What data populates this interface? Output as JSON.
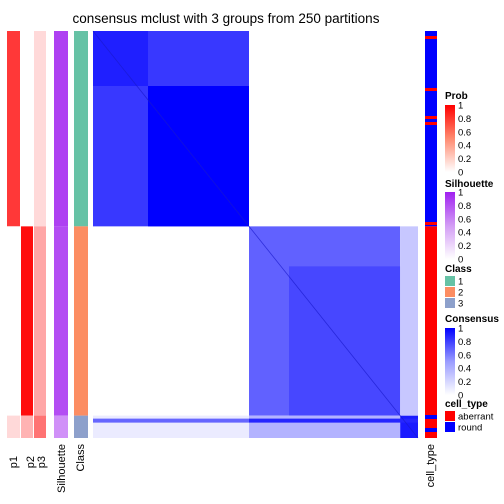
{
  "chart_data": {
    "type": "heatmap",
    "title": "consensus mclust with 3 groups from 250 partitions",
    "n_samples": 200,
    "clusters": [
      {
        "class": "1",
        "size": 96
      },
      {
        "class": "2",
        "size": 93
      },
      {
        "class": "3",
        "size": 11
      }
    ],
    "row_annotations": [
      {
        "label": "p1"
      },
      {
        "label": "p2"
      },
      {
        "label": "p3"
      },
      {
        "label": "Silhouette"
      },
      {
        "label": "Class"
      }
    ],
    "right_annotation": {
      "label": "cell_type"
    },
    "legends": [
      {
        "title": "Prob",
        "ticks": [
          "1",
          "0.8",
          "0.6",
          "0.4",
          "0.2",
          "0"
        ],
        "colors": [
          "#ff0000",
          "#ffffff"
        ]
      },
      {
        "title": "Silhouette",
        "ticks": [
          "1",
          "0.8",
          "0.6",
          "0.4",
          "0.2",
          "0"
        ],
        "colors": [
          "#a020f0",
          "#ffffff"
        ]
      },
      {
        "title": "Class",
        "items": [
          {
            "label": "1",
            "color": "#66c2a5"
          },
          {
            "label": "2",
            "color": "#fc8d62"
          },
          {
            "label": "3",
            "color": "#8da0cb"
          }
        ]
      },
      {
        "title": "Consensus",
        "ticks": [
          "1",
          "0.8",
          "0.6",
          "0.4",
          "0.2",
          "0"
        ],
        "colors": [
          "#0000ff",
          "#ffffff"
        ]
      },
      {
        "title": "cell_type",
        "items": [
          {
            "label": "aberrant",
            "color": "#ff0000"
          },
          {
            "label": "round",
            "color": "#0000ff"
          }
        ]
      }
    ]
  }
}
